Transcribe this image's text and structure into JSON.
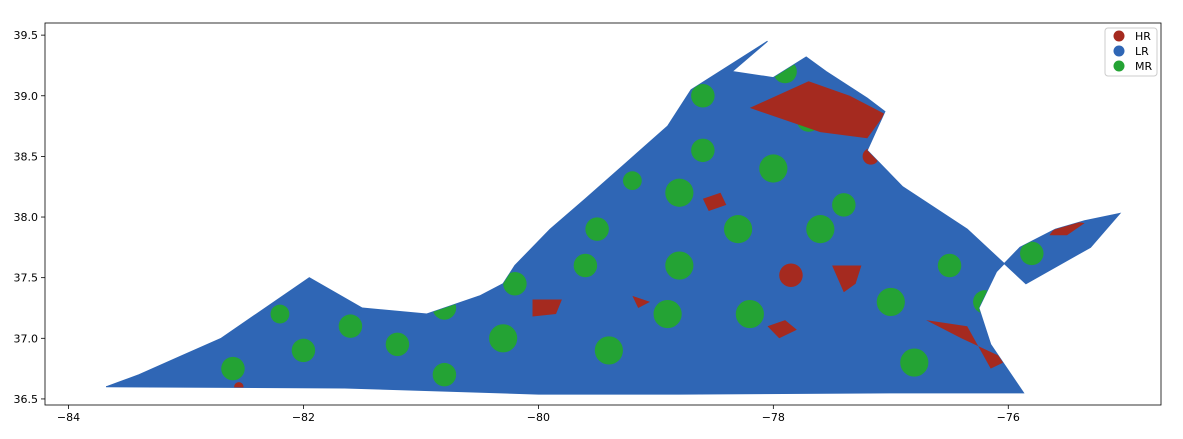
{
  "chart_data": {
    "type": "choropleth-map",
    "title": "",
    "xlabel": "",
    "ylabel": "",
    "xlim": [
      -84.2,
      -74.7
    ],
    "ylim": [
      36.45,
      39.6
    ],
    "x_ticks": [
      -84,
      -82,
      -80,
      -78,
      -76
    ],
    "y_ticks": [
      36.5,
      37.0,
      37.5,
      38.0,
      38.5,
      39.0,
      39.5
    ],
    "x_tick_labels": [
      "−84",
      "−82",
      "−80",
      "−78",
      "−76"
    ],
    "y_tick_labels": [
      "36.5",
      "37.0",
      "37.5",
      "38.0",
      "38.5",
      "39.0",
      "39.5"
    ],
    "grid": false,
    "legend_position": "top-right",
    "categories": [
      {
        "label": "HR",
        "color": "#a52a1f"
      },
      {
        "label": "LR",
        "color": "#2f66b5"
      },
      {
        "label": "MR",
        "color": "#24a334"
      }
    ],
    "state_outline": [
      [
        -83.68,
        36.6
      ],
      [
        -81.65,
        36.59
      ],
      [
        -80.0,
        36.54
      ],
      [
        -78.8,
        36.54
      ],
      [
        -77.0,
        36.55
      ],
      [
        -75.87,
        36.55
      ],
      [
        -76.15,
        36.95
      ],
      [
        -76.25,
        37.25
      ],
      [
        -76.1,
        37.55
      ],
      [
        -75.9,
        37.75
      ],
      [
        -75.6,
        37.9
      ],
      [
        -75.35,
        37.97
      ],
      [
        -75.05,
        38.03
      ],
      [
        -75.3,
        37.75
      ],
      [
        -75.85,
        37.45
      ],
      [
        -76.35,
        37.9
      ],
      [
        -76.9,
        38.25
      ],
      [
        -77.2,
        38.55
      ],
      [
        -77.05,
        38.87
      ],
      [
        -77.2,
        38.98
      ],
      [
        -77.55,
        39.2
      ],
      [
        -77.72,
        39.32
      ],
      [
        -78.0,
        39.15
      ],
      [
        -78.35,
        39.2
      ],
      [
        -78.05,
        39.45
      ],
      [
        -78.7,
        39.05
      ],
      [
        -78.9,
        38.75
      ],
      [
        -79.25,
        38.45
      ],
      [
        -79.6,
        38.15
      ],
      [
        -79.9,
        37.9
      ],
      [
        -80.2,
        37.6
      ],
      [
        -80.3,
        37.45
      ],
      [
        -80.5,
        37.35
      ],
      [
        -80.95,
        37.2
      ],
      [
        -81.5,
        37.25
      ],
      [
        -81.95,
        37.5
      ],
      [
        -82.4,
        37.2
      ],
      [
        -82.7,
        37.0
      ],
      [
        -83.05,
        36.85
      ],
      [
        -83.4,
        36.7
      ],
      [
        -83.68,
        36.6
      ]
    ],
    "regions": [
      {
        "category": "HR",
        "points": [
          [
            -78.2,
            38.9
          ],
          [
            -77.7,
            39.12
          ],
          [
            -77.35,
            39.0
          ],
          [
            -77.05,
            38.85
          ],
          [
            -77.2,
            38.65
          ],
          [
            -77.6,
            38.7
          ],
          [
            -78.05,
            38.85
          ]
        ]
      },
      {
        "category": "HR",
        "points": [
          [
            -77.4,
            37.38
          ],
          [
            -77.5,
            37.6
          ],
          [
            -77.25,
            37.6
          ],
          [
            -77.3,
            37.45
          ]
        ]
      },
      {
        "category": "HR",
        "points": [
          [
            -76.7,
            37.15
          ],
          [
            -76.35,
            37.1
          ],
          [
            -76.15,
            36.75
          ],
          [
            -76.0,
            36.82
          ],
          [
            -76.4,
            37.0
          ]
        ]
      },
      {
        "category": "HR",
        "points": [
          [
            -75.5,
            37.85
          ],
          [
            -75.35,
            37.95
          ],
          [
            -75.55,
            37.98
          ],
          [
            -75.65,
            37.85
          ]
        ]
      },
      {
        "category": "HR",
        "points": [
          [
            -80.05,
            37.18
          ],
          [
            -79.85,
            37.2
          ],
          [
            -79.8,
            37.32
          ],
          [
            -80.05,
            37.32
          ]
        ]
      },
      {
        "category": "HR",
        "points": [
          [
            -79.15,
            37.25
          ],
          [
            -79.05,
            37.3
          ],
          [
            -79.2,
            37.35
          ]
        ]
      },
      {
        "category": "HR",
        "points": [
          [
            -78.55,
            38.05
          ],
          [
            -78.4,
            38.1
          ],
          [
            -78.45,
            38.2
          ],
          [
            -78.6,
            38.15
          ]
        ]
      },
      {
        "category": "HR",
        "points": [
          [
            -77.95,
            37.0
          ],
          [
            -77.8,
            37.07
          ],
          [
            -77.9,
            37.15
          ],
          [
            -78.05,
            37.1
          ]
        ]
      }
    ],
    "blobs": [
      {
        "category": "HR",
        "lon": -77.85,
        "lat": 37.52,
        "r": 0.1
      },
      {
        "category": "HR",
        "lon": -77.17,
        "lat": 38.5,
        "r": 0.07
      },
      {
        "category": "HR",
        "lon": -82.55,
        "lat": 36.6,
        "r": 0.04
      },
      {
        "category": "MR",
        "lon": -82.0,
        "lat": 36.9,
        "r": 0.1
      },
      {
        "category": "MR",
        "lon": -81.6,
        "lat": 37.1,
        "r": 0.1
      },
      {
        "category": "MR",
        "lon": -81.2,
        "lat": 36.95,
        "r": 0.1
      },
      {
        "category": "MR",
        "lon": -80.8,
        "lat": 37.25,
        "r": 0.1
      },
      {
        "category": "MR",
        "lon": -80.3,
        "lat": 37.0,
        "r": 0.12
      },
      {
        "category": "MR",
        "lon": -80.2,
        "lat": 37.45,
        "r": 0.1
      },
      {
        "category": "MR",
        "lon": -79.6,
        "lat": 37.6,
        "r": 0.1
      },
      {
        "category": "MR",
        "lon": -79.5,
        "lat": 37.9,
        "r": 0.1
      },
      {
        "category": "MR",
        "lon": -79.4,
        "lat": 36.9,
        "r": 0.12
      },
      {
        "category": "MR",
        "lon": -78.9,
        "lat": 37.2,
        "r": 0.12
      },
      {
        "category": "MR",
        "lon": -78.8,
        "lat": 37.6,
        "r": 0.12
      },
      {
        "category": "MR",
        "lon": -78.8,
        "lat": 38.2,
        "r": 0.12
      },
      {
        "category": "MR",
        "lon": -78.6,
        "lat": 38.55,
        "r": 0.1
      },
      {
        "category": "MR",
        "lon": -78.3,
        "lat": 37.9,
        "r": 0.12
      },
      {
        "category": "MR",
        "lon": -78.2,
        "lat": 37.2,
        "r": 0.12
      },
      {
        "category": "MR",
        "lon": -78.0,
        "lat": 38.4,
        "r": 0.12
      },
      {
        "category": "MR",
        "lon": -77.6,
        "lat": 37.9,
        "r": 0.12
      },
      {
        "category": "MR",
        "lon": -77.4,
        "lat": 38.1,
        "r": 0.1
      },
      {
        "category": "MR",
        "lon": -77.0,
        "lat": 37.3,
        "r": 0.12
      },
      {
        "category": "MR",
        "lon": -76.8,
        "lat": 36.8,
        "r": 0.12
      },
      {
        "category": "MR",
        "lon": -76.5,
        "lat": 37.6,
        "r": 0.1
      },
      {
        "category": "MR",
        "lon": -76.2,
        "lat": 37.3,
        "r": 0.1
      },
      {
        "category": "MR",
        "lon": -75.8,
        "lat": 37.7,
        "r": 0.1
      },
      {
        "category": "MR",
        "lon": -77.9,
        "lat": 39.2,
        "r": 0.1
      },
      {
        "category": "MR",
        "lon": -78.6,
        "lat": 39.0,
        "r": 0.1
      },
      {
        "category": "MR",
        "lon": -79.0,
        "lat": 38.8,
        "r": 0.1
      },
      {
        "category": "MR",
        "lon": -80.8,
        "lat": 36.7,
        "r": 0.1
      },
      {
        "category": "MR",
        "lon": -82.6,
        "lat": 36.75,
        "r": 0.1
      },
      {
        "category": "MR",
        "lon": -82.2,
        "lat": 37.2,
        "r": 0.08
      },
      {
        "category": "MR",
        "lon": -79.2,
        "lat": 38.3,
        "r": 0.08
      },
      {
        "category": "MR",
        "lon": -77.7,
        "lat": 38.8,
        "r": 0.1
      }
    ]
  }
}
